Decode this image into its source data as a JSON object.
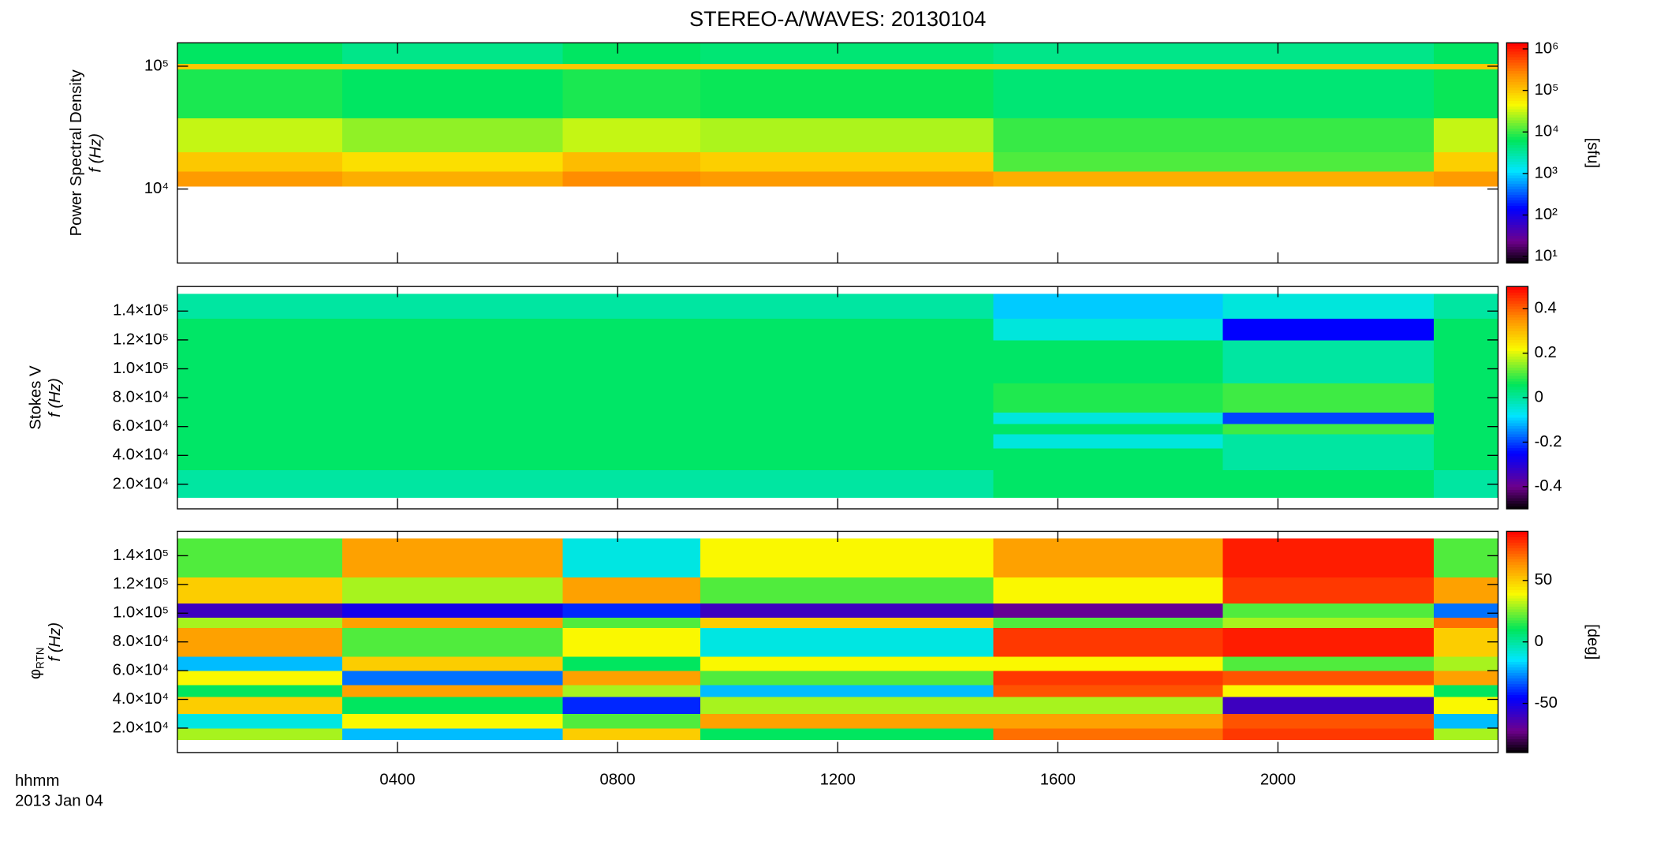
{
  "chart_data": [
    {
      "type": "heatmap",
      "title": "STEREO-A/WAVES: 20130104",
      "ylabel": "Power Spectral Density",
      "ylabel_sub": "f (Hz)",
      "colorbar_label": "[sfu]",
      "colormap": "rainbow",
      "xlim": [
        0,
        24
      ],
      "xticks": [
        {
          "value": 4,
          "label": "0400"
        },
        {
          "value": 8,
          "label": "0800"
        },
        {
          "value": 12,
          "label": "1200"
        },
        {
          "value": 16,
          "label": "1600"
        },
        {
          "value": 20,
          "label": "2000"
        }
      ],
      "ylim": [
        2500,
        155000
      ],
      "ylog": true,
      "yticks": [
        {
          "value": 10000,
          "label": "10⁴"
        },
        {
          "value": 100000,
          "label": "10⁵"
        }
      ],
      "zlim": [
        7,
        1400000
      ],
      "zlog": true,
      "zticks": [
        {
          "value": 10,
          "label": "10¹"
        },
        {
          "value": 100,
          "label": "10²"
        },
        {
          "value": 1000,
          "label": "10³"
        },
        {
          "value": 10000,
          "label": "10⁴"
        },
        {
          "value": 100000,
          "label": "10⁵"
        },
        {
          "value": 1000000,
          "label": "10⁶"
        }
      ],
      "x_edges": [
        0,
        3,
        7,
        9.5,
        14.83,
        22.83,
        24
      ],
      "y_edges": [
        10500,
        14000,
        20000,
        38000,
        95000,
        105000,
        155000
      ],
      "z": [
        [
          200000,
          150000,
          250000,
          200000,
          150000,
          200000
        ],
        [
          100000,
          70000,
          120000,
          90000,
          12000,
          90000
        ],
        [
          30000,
          20000,
          30000,
          25000,
          10000,
          30000
        ],
        [
          8000,
          6000,
          8000,
          7000,
          5000,
          7000
        ],
        [
          100000,
          100000,
          100000,
          100000,
          100000,
          100000
        ],
        [
          6000,
          4000,
          6000,
          5000,
          4000,
          6000
        ]
      ]
    },
    {
      "type": "heatmap",
      "ylabel": "Stokes V",
      "ylabel_sub": "f (Hz)",
      "colormap": "rainbow",
      "xlim": [
        0,
        24
      ],
      "xticks": [
        {
          "value": 4,
          "label": "0400"
        },
        {
          "value": 8,
          "label": "0800"
        },
        {
          "value": 12,
          "label": "1200"
        },
        {
          "value": 16,
          "label": "1600"
        },
        {
          "value": 20,
          "label": "2000"
        }
      ],
      "ylim": [
        3000,
        157000
      ],
      "ylog": false,
      "yticks": [
        {
          "value": 20000,
          "label": "2.0×10⁴"
        },
        {
          "value": 40000,
          "label": "4.0×10⁴"
        },
        {
          "value": 60000,
          "label": "6.0×10⁴"
        },
        {
          "value": 80000,
          "label": "8.0×10⁴"
        },
        {
          "value": 100000,
          "label": "1.0×10⁵"
        },
        {
          "value": 120000,
          "label": "1.2×10⁵"
        },
        {
          "value": 140000,
          "label": "1.4×10⁵"
        }
      ],
      "zlim": [
        -0.5,
        0.5
      ],
      "zlog": false,
      "zticks": [
        -0.4,
        -0.2,
        0.0,
        0.2,
        0.4
      ],
      "x_edges": [
        0,
        3,
        7,
        9.5,
        14.83,
        19,
        22.83,
        24
      ],
      "y_edges": [
        11000,
        30000,
        45000,
        55000,
        62000,
        70000,
        90000,
        120000,
        135000,
        152000
      ],
      "z": [
        [
          0.0,
          0.0,
          0.0,
          0.0,
          0.05,
          0.05,
          0.0
        ],
        [
          0.05,
          0.05,
          0.05,
          0.05,
          0.05,
          0.0,
          0.05
        ],
        [
          0.05,
          0.05,
          0.05,
          0.05,
          -0.05,
          0.0,
          0.05
        ],
        [
          0.05,
          0.05,
          0.05,
          0.05,
          0.05,
          0.1,
          0.05
        ],
        [
          0.05,
          0.05,
          0.05,
          0.05,
          -0.05,
          -0.2,
          0.05
        ],
        [
          0.05,
          0.05,
          0.05,
          0.05,
          0.08,
          0.1,
          0.05
        ],
        [
          0.05,
          0.05,
          0.05,
          0.05,
          0.05,
          0.0,
          0.05
        ],
        [
          0.05,
          0.05,
          0.05,
          0.05,
          -0.05,
          -0.25,
          0.05
        ],
        [
          0.0,
          0.0,
          0.0,
          0.0,
          -0.1,
          -0.05,
          0.0
        ]
      ]
    },
    {
      "type": "heatmap",
      "ylabel": "φ",
      "ylabel_subscript": "RTN",
      "ylabel_sub": "f (Hz)",
      "colorbar_label": "[deg]",
      "colormap": "rainbow",
      "x_label": "hhmm",
      "date_label": "2013 Jan 04",
      "xlim": [
        0,
        24
      ],
      "xticks": [
        {
          "value": 4,
          "label": "0400"
        },
        {
          "value": 8,
          "label": "0800"
        },
        {
          "value": 12,
          "label": "1200"
        },
        {
          "value": 16,
          "label": "1600"
        },
        {
          "value": 20,
          "label": "2000"
        }
      ],
      "ylim": [
        3000,
        157000
      ],
      "ylog": false,
      "yticks": [
        {
          "value": 20000,
          "label": "2.0×10⁴"
        },
        {
          "value": 40000,
          "label": "4.0×10⁴"
        },
        {
          "value": 60000,
          "label": "6.0×10⁴"
        },
        {
          "value": 80000,
          "label": "8.0×10⁴"
        },
        {
          "value": 100000,
          "label": "1.0×10⁵"
        },
        {
          "value": 120000,
          "label": "1.2×10⁵"
        },
        {
          "value": 140000,
          "label": "1.4×10⁵"
        }
      ],
      "zlim": [
        -90,
        90
      ],
      "zlog": false,
      "zticks": [
        -50,
        0,
        50
      ],
      "x_edges": [
        0,
        3,
        7,
        9.5,
        14.83,
        19,
        22.83,
        24
      ],
      "y_edges": [
        12000,
        20000,
        30000,
        42000,
        50000,
        60000,
        70000,
        90000,
        97000,
        107000,
        125000,
        152000
      ],
      "z": [
        [
          30,
          -20,
          50,
          10,
          70,
          80,
          30
        ],
        [
          -10,
          40,
          20,
          60,
          60,
          75,
          -20
        ],
        [
          50,
          10,
          -40,
          30,
          30,
          -60,
          40
        ],
        [
          10,
          60,
          30,
          -20,
          75,
          40,
          10
        ],
        [
          40,
          -30,
          60,
          20,
          80,
          75,
          60
        ],
        [
          -20,
          50,
          10,
          40,
          40,
          20,
          30
        ],
        [
          60,
          20,
          40,
          -10,
          80,
          85,
          50
        ],
        [
          30,
          60,
          20,
          50,
          20,
          30,
          70
        ],
        [
          -60,
          -50,
          -40,
          -60,
          -70,
          20,
          -30
        ],
        [
          50,
          30,
          60,
          20,
          40,
          80,
          60
        ],
        [
          20,
          60,
          -10,
          40,
          60,
          85,
          20
        ]
      ]
    }
  ]
}
